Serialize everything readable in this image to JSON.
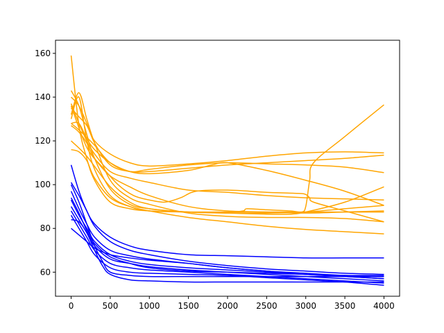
{
  "chart_data": {
    "type": "line",
    "title": "",
    "xlabel": "",
    "ylabel": "",
    "xlim": [
      -200,
      4200
    ],
    "ylim": [
      49,
      166
    ],
    "xticks": [
      0,
      500,
      1000,
      1500,
      2000,
      2500,
      3000,
      3500,
      4000
    ],
    "yticks": [
      60,
      80,
      100,
      120,
      140,
      160
    ],
    "xtick_labels": [
      "0",
      "500",
      "1000",
      "1500",
      "2000",
      "2500",
      "3000",
      "3500",
      "4000"
    ],
    "ytick_labels": [
      "60",
      "80",
      "100",
      "120",
      "140",
      "160"
    ],
    "grid": false,
    "legend": "none",
    "colors": {
      "group_a": "#ffa500",
      "group_b": "#0000ff"
    },
    "series": [
      {
        "color": "#ffa500",
        "x": [
          0,
          100,
          200,
          300,
          500,
          750,
          1000,
          1500,
          2000,
          2500,
          3000,
          3500,
          4000
        ],
        "y": [
          159,
          127,
          112,
          102,
          92,
          89,
          88,
          87.5,
          87.5,
          87.5,
          87.5,
          87.5,
          87.5
        ]
      },
      {
        "color": "#ffa500",
        "x": [
          0,
          100,
          200,
          300,
          500,
          750,
          1000,
          1500,
          2000,
          2500,
          3000,
          3500,
          4000
        ],
        "y": [
          143,
          136,
          123,
          112,
          98,
          91,
          89,
          87.5,
          87,
          87,
          87.5,
          89,
          90.5
        ]
      },
      {
        "color": "#ffa500",
        "x": [
          0,
          100,
          200,
          300,
          500,
          750,
          1000,
          1500,
          2000,
          2500,
          3000,
          3500,
          4000
        ],
        "y": [
          140,
          136,
          128,
          119,
          109,
          106,
          106,
          107.5,
          109,
          110,
          111,
          112,
          113.5
        ]
      },
      {
        "color": "#ffa500",
        "x": [
          0,
          100,
          200,
          300,
          500,
          750,
          1000,
          1500,
          2000,
          2500,
          3000,
          3500,
          4000
        ],
        "y": [
          137,
          128,
          120,
          114,
          106,
          103,
          101,
          97.5,
          96.5,
          95,
          94,
          93.5,
          93
        ]
      },
      {
        "color": "#ffa500",
        "x": [
          0,
          100,
          200,
          300,
          500,
          750,
          1000,
          1500,
          2000,
          2500,
          3000,
          3500,
          4000
        ],
        "y": [
          135,
          131,
          127,
          120,
          114,
          110,
          108.5,
          109.5,
          111,
          113,
          114.5,
          115,
          114.5
        ]
      },
      {
        "color": "#ffa500",
        "x": [
          0,
          100,
          200,
          300,
          500,
          750,
          1000,
          1500,
          2000,
          2500,
          3000,
          3500,
          4000
        ],
        "y": [
          132,
          142,
          130,
          119,
          102,
          94,
          91,
          87,
          85.5,
          85,
          85,
          84.5,
          83
        ]
      },
      {
        "color": "#ffa500",
        "x": [
          0,
          100,
          200,
          300,
          500,
          750,
          1000,
          1500,
          1800,
          2000,
          2500,
          3000,
          3500,
          4000
        ],
        "y": [
          128,
          128,
          121,
          116,
          110,
          106,
          105,
          106.5,
          109,
          110,
          106.5,
          102,
          97,
          90.5
        ]
      },
      {
        "color": "#ffa500",
        "x": [
          0,
          100,
          200,
          300,
          500,
          750,
          1000,
          1500,
          2000,
          2500,
          3000,
          3500,
          4000
        ],
        "y": [
          127,
          124,
          119,
          112,
          104,
          99,
          95,
          90,
          88,
          87.5,
          87,
          87.5,
          88
        ]
      },
      {
        "color": "#ffa500",
        "x": [
          0,
          100,
          200,
          300,
          500,
          750,
          1000,
          1500,
          2000,
          2500,
          3000,
          3500,
          4000
        ],
        "y": [
          116,
          115,
          111,
          103,
          94,
          90,
          88,
          85,
          83,
          81,
          79.5,
          78.5,
          77.5
        ]
      },
      {
        "color": "#ffa500",
        "x": [
          0,
          200,
          400,
          600,
          800,
          1000,
          1200,
          1400,
          1600,
          2000,
          2500,
          2900,
          3000,
          3050,
          3100,
          3500,
          4000
        ],
        "y": [
          136,
          117,
          108,
          100,
          95,
          93,
          92,
          94,
          97,
          97.5,
          96.5,
          96,
          95.5,
          94,
          92,
          88,
          83
        ]
      },
      {
        "color": "#ffa500",
        "x": [
          0,
          100,
          200,
          300,
          500,
          750,
          1000,
          1500,
          2000,
          2200,
          2250,
          2500,
          2800,
          2950,
          3000,
          3050,
          3100,
          3500,
          4000
        ],
        "y": [
          130,
          140,
          120,
          107,
          95,
          90,
          88,
          87.5,
          87.5,
          88,
          89,
          88.5,
          88,
          87.5,
          90,
          102,
          110,
          122,
          136.5
        ]
      },
      {
        "color": "#ffa500",
        "x": [
          0,
          100,
          300,
          500,
          750,
          1000,
          1500,
          2000,
          2500,
          3000,
          3500,
          4000
        ],
        "y": [
          128,
          125,
          118,
          110,
          106,
          107,
          109,
          110,
          109.5,
          109,
          108,
          105.5
        ]
      },
      {
        "color": "#ffa500",
        "x": [
          0,
          200,
          500,
          750,
          1000,
          1500,
          2000,
          2500,
          2800,
          3000,
          3500,
          4000
        ],
        "y": [
          120,
          113,
          99,
          92,
          89,
          87.5,
          87,
          86.5,
          86.5,
          87.5,
          92,
          99
        ]
      },
      {
        "color": "#0000ff",
        "x": [
          0,
          100,
          200,
          300,
          500,
          750,
          1000,
          1500,
          2000,
          2500,
          3000,
          3500,
          4000
        ],
        "y": [
          109,
          97,
          88,
          82,
          76,
          72,
          70,
          68,
          67.5,
          67,
          66.5,
          66.5,
          66.5
        ]
      },
      {
        "color": "#0000ff",
        "x": [
          0,
          100,
          200,
          300,
          500,
          750,
          1000,
          1500,
          2000,
          2500,
          3000,
          3500,
          4000
        ],
        "y": [
          101,
          95,
          88,
          81,
          74,
          70,
          68,
          65,
          63,
          61.5,
          60.5,
          59.5,
          59
        ]
      },
      {
        "color": "#0000ff",
        "x": [
          0,
          100,
          200,
          300,
          500,
          750,
          1000,
          1500,
          2000,
          2500,
          3000,
          3500,
          4000
        ],
        "y": [
          97,
          89,
          82,
          76,
          70,
          67.5,
          66,
          64,
          62,
          60.5,
          59.5,
          58.5,
          58
        ]
      },
      {
        "color": "#0000ff",
        "x": [
          0,
          100,
          200,
          300,
          500,
          750,
          1000,
          1500,
          2000,
          2500,
          3000,
          3500,
          4000
        ],
        "y": [
          93,
          86,
          80,
          74,
          68,
          65,
          63.5,
          62,
          61,
          60,
          59,
          58,
          57
        ]
      },
      {
        "color": "#0000ff",
        "x": [
          0,
          100,
          200,
          300,
          500,
          750,
          1000,
          1500,
          2000,
          2500,
          3000,
          3500,
          4000
        ],
        "y": [
          90,
          84,
          78,
          72,
          66,
          64,
          62.5,
          61,
          60,
          59,
          58,
          57,
          56
        ]
      },
      {
        "color": "#0000ff",
        "x": [
          0,
          100,
          200,
          300,
          500,
          750,
          1000,
          1500,
          2000,
          2500,
          3000,
          3500,
          4000
        ],
        "y": [
          88,
          82,
          76,
          70,
          64,
          62,
          61,
          60,
          59,
          58,
          57,
          56,
          55
        ]
      },
      {
        "color": "#0000ff",
        "x": [
          0,
          100,
          200,
          300,
          500,
          750,
          1000,
          1500,
          2000,
          2500,
          3000,
          3500,
          4000
        ],
        "y": [
          86,
          80,
          74,
          68,
          62,
          60,
          59.5,
          59,
          58.5,
          57.5,
          56.5,
          55.5,
          54
        ]
      },
      {
        "color": "#0000ff",
        "x": [
          0,
          100,
          200,
          300,
          400,
          500,
          750,
          1000,
          1500,
          2000,
          2500,
          3000,
          3500,
          4000
        ],
        "y": [
          100,
          92,
          82,
          72,
          65,
          60,
          58.5,
          58,
          58,
          58,
          58,
          58,
          58,
          58
        ]
      },
      {
        "color": "#0000ff",
        "x": [
          0,
          100,
          200,
          300,
          400,
          500,
          750,
          1000,
          1500,
          2000,
          2500,
          3000,
          3500,
          4000
        ],
        "y": [
          84,
          83,
          78,
          70,
          63,
          59,
          56.5,
          56,
          55.5,
          55.5,
          55.5,
          55.5,
          55.5,
          55.5
        ]
      },
      {
        "color": "#0000ff",
        "x": [
          0,
          100,
          200,
          300,
          500,
          750,
          1000,
          1500,
          2000,
          2500,
          3000,
          3500,
          4000
        ],
        "y": [
          80,
          77,
          74,
          71,
          68,
          66.5,
          65.5,
          64,
          62,
          60.5,
          59,
          58,
          57
        ]
      },
      {
        "color": "#0000ff",
        "x": [
          0,
          100,
          200,
          300,
          500,
          750,
          1000,
          1500,
          2000,
          2500,
          3000,
          3500,
          4000
        ],
        "y": [
          94,
          87,
          79,
          73,
          67,
          64,
          62,
          60.5,
          60,
          59.5,
          59,
          58.5,
          58.5
        ]
      }
    ]
  }
}
